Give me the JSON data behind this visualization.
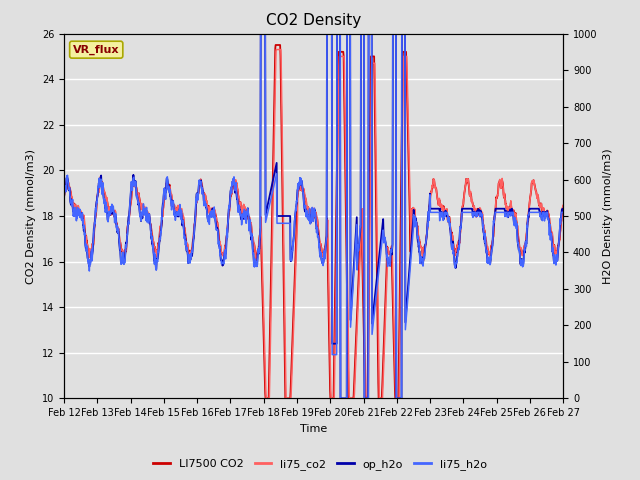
{
  "title": "CO2 Density",
  "xlabel": "Time",
  "ylabel_left": "CO2 Density (mmol/m3)",
  "ylabel_right": "H2O Density (mmol/m3)",
  "ylim_left": [
    10,
    26
  ],
  "ylim_right": [
    0,
    1000
  ],
  "xtick_labels": [
    "Feb 12",
    "Feb 13",
    "Feb 14",
    "Feb 15",
    "Feb 16",
    "Feb 17",
    "Feb 18",
    "Feb 19",
    "Feb 20",
    "Feb 21",
    "Feb 22",
    "Feb 23",
    "Feb 24",
    "Feb 25",
    "Feb 26",
    "Feb 27"
  ],
  "bg_color": "#e0e0e0",
  "legend_label": "VR_flux",
  "legend_bg": "#f5f0a0",
  "legend_edge": "#aaa800",
  "legend_text_color": "#880000",
  "colors": {
    "LI7500_CO2": "#cc0000",
    "li75_co2": "#ff6060",
    "op_h2o": "#0000aa",
    "li75_h2o": "#4466ff"
  },
  "lw": {
    "LI7500_CO2": 1.3,
    "li75_co2": 1.1,
    "op_h2o": 1.3,
    "li75_h2o": 1.1
  },
  "n_days": 15,
  "pts_per_day": 96
}
